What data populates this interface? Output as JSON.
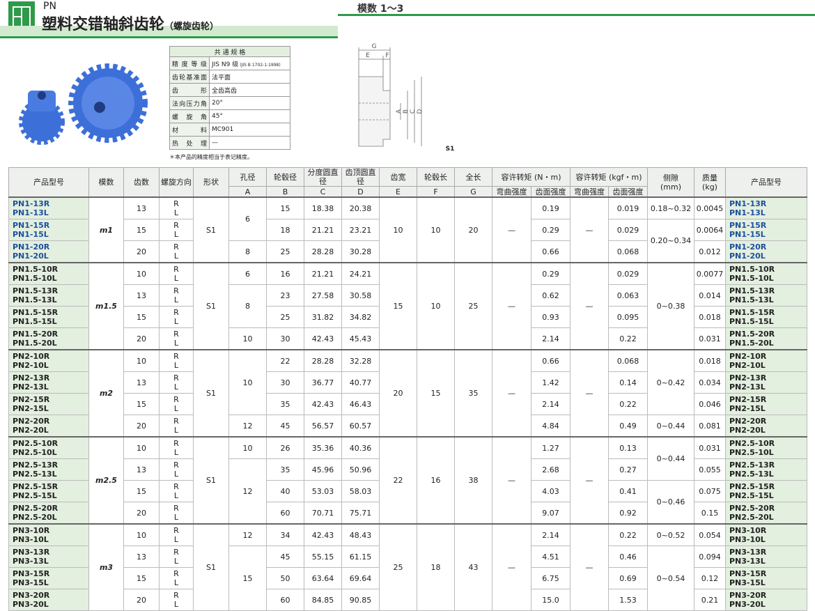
{
  "header": {
    "series": "PN",
    "title": "塑料交错轴斜齿轮",
    "subtitle": "（螺旋齿轮）",
    "module_range": "模数 1～3"
  },
  "spec": {
    "title": "共 通 规 格",
    "rows": [
      [
        "精度等级",
        "JIS N9 级",
        "(JIS B 1702-1:1998)"
      ],
      [
        "齿轮基准面",
        "法平面"
      ],
      [
        "齿形",
        "全齿高齿"
      ],
      [
        "法向压力角",
        "20°"
      ],
      [
        "螺旋角",
        "45°"
      ],
      [
        "材料",
        "MC901"
      ],
      [
        "热处理",
        "—"
      ]
    ],
    "note": "＊本产品的精度相当于表记精度。"
  },
  "diagram": {
    "labels": [
      "G",
      "E",
      "F",
      "A",
      "B",
      "C",
      "D"
    ],
    "shape": "S1"
  },
  "table": {
    "header": {
      "code": "产品型号",
      "module": "模数",
      "teeth": "齿数",
      "dir": "螺旋方向",
      "shape": "形状",
      "bore": [
        "孔径",
        "A"
      ],
      "hub": [
        "轮毂径",
        "B"
      ],
      "pitch": [
        "分度圆直径",
        "C"
      ],
      "tip": [
        "齿顶圆直径",
        "D"
      ],
      "face": [
        "齿宽",
        "E"
      ],
      "hublen": [
        "轮毂长",
        "F"
      ],
      "total": [
        "全长",
        "G"
      ],
      "torque_n": "容许转矩 (N・m)",
      "torque_kgf": "容许转矩 (kgf・m)",
      "bending": "弯曲强度",
      "surface": "齿面强度",
      "backlash": [
        "侧隙",
        "(mm)"
      ],
      "mass": [
        "质量",
        "(kg)"
      ]
    },
    "directions": [
      "R",
      "L"
    ],
    "groups": [
      {
        "module": "m1",
        "shape": "S1",
        "face": "10",
        "hublen": "10",
        "total": "20",
        "bending_n": "—",
        "bending_kgf": "—",
        "rows": [
          {
            "code": [
              "PN1-13R",
              "PN1-13L"
            ],
            "teeth": "13",
            "bore": "6",
            "hub": "15",
            "pitch": "18.38",
            "tip": "20.38",
            "torque_n": "0.19",
            "torque_kgf": "0.019",
            "backlash": "0.18~0.32",
            "mass": "0.0045"
          },
          {
            "code": [
              "PN1-15R",
              "PN1-15L"
            ],
            "teeth": "15",
            "bore": null,
            "hub": "18",
            "pitch": "21.21",
            "tip": "23.21",
            "torque_n": "0.29",
            "torque_kgf": "0.029",
            "backlash": "0.20~0.34",
            "mass": "0.0064"
          },
          {
            "code": [
              "PN1-20R",
              "PN1-20L"
            ],
            "teeth": "20",
            "bore": "8",
            "hub": "25",
            "pitch": "28.28",
            "tip": "30.28",
            "torque_n": "0.66",
            "torque_kgf": "0.068",
            "backlash": null,
            "mass": "0.012"
          }
        ]
      },
      {
        "module": "m1.5",
        "shape": "S1",
        "face": "15",
        "hublen": "10",
        "total": "25",
        "bending_n": "—",
        "bending_kgf": "—",
        "rows": [
          {
            "code": [
              "PN1.5-10R",
              "PN1.5-10L"
            ],
            "teeth": "10",
            "bore": "6",
            "hub": "16",
            "pitch": "21.21",
            "tip": "24.21",
            "torque_n": "0.29",
            "torque_kgf": "0.029",
            "backlash": "0~0.38",
            "mass": "0.0077"
          },
          {
            "code": [
              "PN1.5-13R",
              "PN1.5-13L"
            ],
            "teeth": "13",
            "bore": "8",
            "hub": "23",
            "pitch": "27.58",
            "tip": "30.58",
            "torque_n": "0.62",
            "torque_kgf": "0.063",
            "backlash": null,
            "mass": "0.014"
          },
          {
            "code": [
              "PN1.5-15R",
              "PN1.5-15L"
            ],
            "teeth": "15",
            "bore": null,
            "hub": "25",
            "pitch": "31.82",
            "tip": "34.82",
            "torque_n": "0.93",
            "torque_kgf": "0.095",
            "backlash": null,
            "mass": "0.018"
          },
          {
            "code": [
              "PN1.5-20R",
              "PN1.5-20L"
            ],
            "teeth": "20",
            "bore": "10",
            "hub": "30",
            "pitch": "42.43",
            "tip": "45.43",
            "torque_n": "2.14",
            "torque_kgf": "0.22",
            "backlash": null,
            "mass": "0.031"
          }
        ]
      },
      {
        "module": "m2",
        "shape": "S1",
        "face": "20",
        "hublen": "15",
        "total": "35",
        "bending_n": "—",
        "bending_kgf": "—",
        "rows": [
          {
            "code": [
              "PN2-10R",
              "PN2-10L"
            ],
            "teeth": "10",
            "bore": "10",
            "hub": "22",
            "pitch": "28.28",
            "tip": "32.28",
            "torque_n": "0.66",
            "torque_kgf": "0.068",
            "backlash": "0~0.42",
            "mass": "0.018"
          },
          {
            "code": [
              "PN2-13R",
              "PN2-13L"
            ],
            "teeth": "13",
            "bore": null,
            "hub": "30",
            "pitch": "36.77",
            "tip": "40.77",
            "torque_n": "1.42",
            "torque_kgf": "0.14",
            "backlash": null,
            "mass": "0.034"
          },
          {
            "code": [
              "PN2-15R",
              "PN2-15L"
            ],
            "teeth": "15",
            "bore": null,
            "hub": "35",
            "pitch": "42.43",
            "tip": "46.43",
            "torque_n": "2.14",
            "torque_kgf": "0.22",
            "backlash": null,
            "mass": "0.046"
          },
          {
            "code": [
              "PN2-20R",
              "PN2-20L"
            ],
            "teeth": "20",
            "bore": "12",
            "hub": "45",
            "pitch": "56.57",
            "tip": "60.57",
            "torque_n": "4.84",
            "torque_kgf": "0.49",
            "backlash": "0~0.44",
            "mass": "0.081"
          }
        ]
      },
      {
        "module": "m2.5",
        "shape": "S1",
        "face": "22",
        "hublen": "16",
        "total": "38",
        "bending_n": "—",
        "bending_kgf": "—",
        "rows": [
          {
            "code": [
              "PN2.5-10R",
              "PN2.5-10L"
            ],
            "teeth": "10",
            "bore": "10",
            "hub": "26",
            "pitch": "35.36",
            "tip": "40.36",
            "torque_n": "1.27",
            "torque_kgf": "0.13",
            "backlash": "0~0.44",
            "mass": "0.031"
          },
          {
            "code": [
              "PN2.5-13R",
              "PN2.5-13L"
            ],
            "teeth": "13",
            "bore": "12",
            "hub": "35",
            "pitch": "45.96",
            "tip": "50.96",
            "torque_n": "2.68",
            "torque_kgf": "0.27",
            "backlash": null,
            "mass": "0.055"
          },
          {
            "code": [
              "PN2.5-15R",
              "PN2.5-15L"
            ],
            "teeth": "15",
            "bore": null,
            "hub": "40",
            "pitch": "53.03",
            "tip": "58.03",
            "torque_n": "4.03",
            "torque_kgf": "0.41",
            "backlash": "0~0.46",
            "mass": "0.075"
          },
          {
            "code": [
              "PN2.5-20R",
              "PN2.5-20L"
            ],
            "teeth": "20",
            "bore": null,
            "hub": "60",
            "pitch": "70.71",
            "tip": "75.71",
            "torque_n": "9.07",
            "torque_kgf": "0.92",
            "backlash": null,
            "mass": "0.15"
          }
        ]
      },
      {
        "module": "m3",
        "shape": "S1",
        "face": "25",
        "hublen": "18",
        "total": "43",
        "bending_n": "—",
        "bending_kgf": "—",
        "rows": [
          {
            "code": [
              "PN3-10R",
              "PN3-10L"
            ],
            "teeth": "10",
            "bore": "12",
            "hub": "34",
            "pitch": "42.43",
            "tip": "48.43",
            "torque_n": "2.14",
            "torque_kgf": "0.22",
            "backlash": "0~0.52",
            "mass": "0.054"
          },
          {
            "code": [
              "PN3-13R",
              "PN3-13L"
            ],
            "teeth": "13",
            "bore": "15",
            "hub": "45",
            "pitch": "55.15",
            "tip": "61.15",
            "torque_n": "4.51",
            "torque_kgf": "0.46",
            "backlash": "0~0.54",
            "mass": "0.094"
          },
          {
            "code": [
              "PN3-15R",
              "PN3-15L"
            ],
            "teeth": "15",
            "bore": null,
            "hub": "50",
            "pitch": "63.64",
            "tip": "69.64",
            "torque_n": "6.75",
            "torque_kgf": "0.69",
            "backlash": null,
            "mass": "0.12"
          },
          {
            "code": [
              "PN3-20R",
              "PN3-20L"
            ],
            "teeth": "20",
            "bore": null,
            "hub": "60",
            "pitch": "84.85",
            "tip": "90.85",
            "torque_n": "15.0",
            "torque_kgf": "1.53",
            "backlash": null,
            "mass": "0.21"
          }
        ]
      }
    ]
  }
}
